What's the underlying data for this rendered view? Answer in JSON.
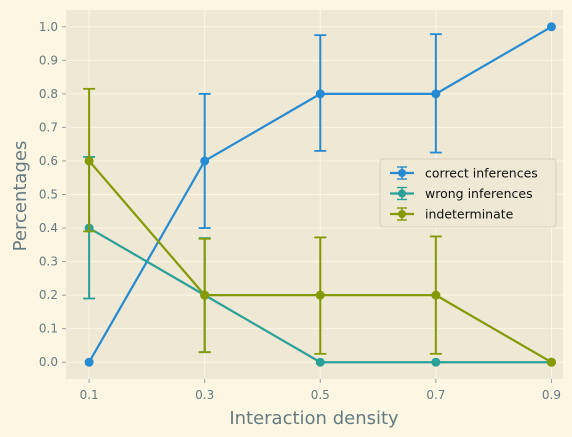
{
  "chart_data": {
    "type": "line",
    "xlabel": "Interaction density",
    "ylabel": "Percentages",
    "x": [
      0.1,
      0.3,
      0.5,
      0.7,
      0.9
    ],
    "x_ticks": [
      "0.1",
      "0.3",
      "0.5",
      "0.7",
      "0.9"
    ],
    "y_ticks": [
      "0.0",
      "0.1",
      "0.2",
      "0.3",
      "0.4",
      "0.5",
      "0.6",
      "0.7",
      "0.8",
      "0.9",
      "1.0"
    ],
    "xlim": [
      0.06,
      0.92
    ],
    "ylim": [
      -0.05,
      1.05
    ],
    "grid": true,
    "legend_position": "center-right",
    "series": [
      {
        "name": "correct inferences",
        "color": "#268bd2",
        "values": [
          0.0,
          0.6,
          0.8,
          0.8,
          1.0
        ],
        "err_low": [
          0.0,
          0.4,
          0.63,
          0.625,
          1.0
        ],
        "err_high": [
          0.0,
          0.8,
          0.975,
          0.978,
          1.0
        ]
      },
      {
        "name": "wrong inferences",
        "color": "#2aa198",
        "values": [
          0.4,
          0.2,
          0.0,
          0.0,
          0.0
        ],
        "err_low": [
          0.19,
          0.03,
          0.0,
          0.0,
          0.0
        ],
        "err_high": [
          0.612,
          0.37,
          0.0,
          0.0,
          0.0
        ]
      },
      {
        "name": "indeterminate",
        "color": "#859900",
        "values": [
          0.6,
          0.2,
          0.2,
          0.2,
          0.0
        ],
        "err_low": [
          0.39,
          0.03,
          0.025,
          0.025,
          0.0
        ],
        "err_high": [
          0.815,
          0.368,
          0.372,
          0.375,
          0.0
        ]
      }
    ]
  }
}
